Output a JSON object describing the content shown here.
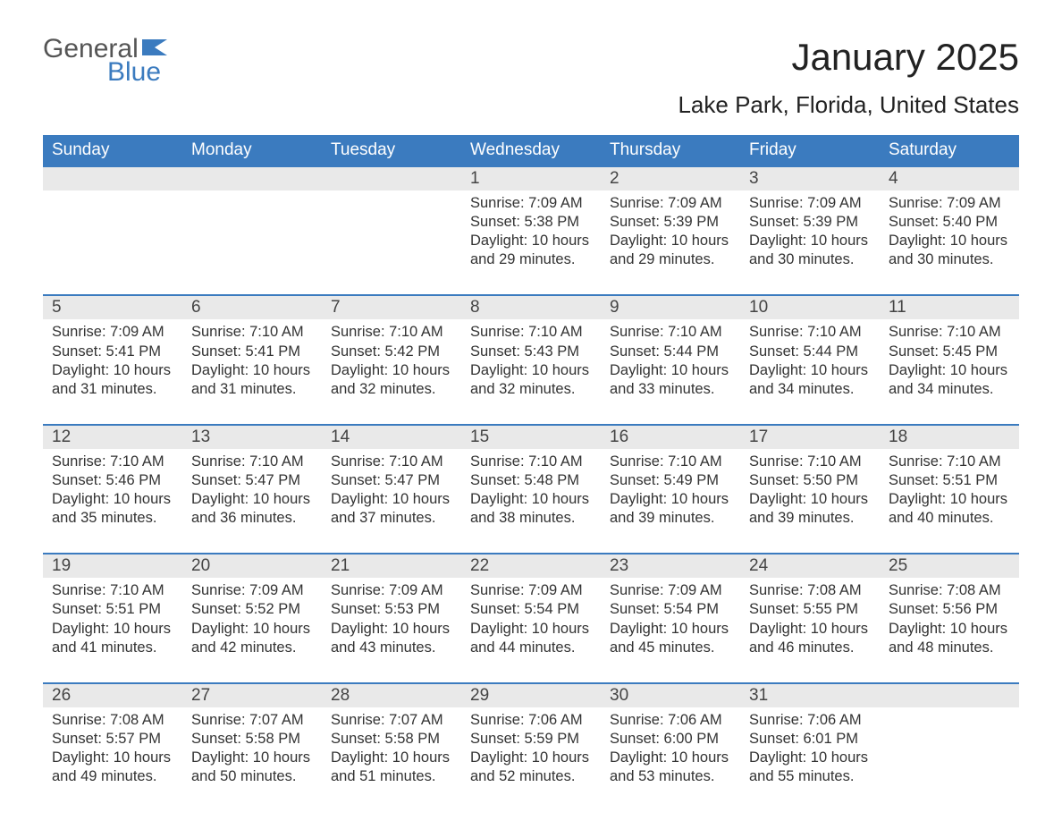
{
  "logo": {
    "general": "General",
    "blue": "Blue"
  },
  "title": "January 2025",
  "location": "Lake Park, Florida, United States",
  "colors": {
    "header_bg": "#3b7bbf",
    "header_text": "#ffffff",
    "daynum_bg": "#e9e9e9",
    "text": "#333333",
    "border": "#3b7bbf",
    "background": "#ffffff"
  },
  "weekdays": [
    "Sunday",
    "Monday",
    "Tuesday",
    "Wednesday",
    "Thursday",
    "Friday",
    "Saturday"
  ],
  "layout": {
    "columns": 7,
    "rows": 5,
    "header_fontsize": 19,
    "body_fontsize": 16.5,
    "title_fontsize": 42,
    "location_fontsize": 26
  },
  "labels": {
    "sunrise": "Sunrise: ",
    "sunset": "Sunset: ",
    "daylight_prefix": "Daylight: ",
    "and": " and ",
    "hours": " hours",
    "minutes": " minutes."
  },
  "weeks": [
    [
      null,
      null,
      null,
      {
        "day": "1",
        "sunrise": "7:09 AM",
        "sunset": "5:38 PM",
        "dl_h": "10",
        "dl_m": "29"
      },
      {
        "day": "2",
        "sunrise": "7:09 AM",
        "sunset": "5:39 PM",
        "dl_h": "10",
        "dl_m": "29"
      },
      {
        "day": "3",
        "sunrise": "7:09 AM",
        "sunset": "5:39 PM",
        "dl_h": "10",
        "dl_m": "30"
      },
      {
        "day": "4",
        "sunrise": "7:09 AM",
        "sunset": "5:40 PM",
        "dl_h": "10",
        "dl_m": "30"
      }
    ],
    [
      {
        "day": "5",
        "sunrise": "7:09 AM",
        "sunset": "5:41 PM",
        "dl_h": "10",
        "dl_m": "31"
      },
      {
        "day": "6",
        "sunrise": "7:10 AM",
        "sunset": "5:41 PM",
        "dl_h": "10",
        "dl_m": "31"
      },
      {
        "day": "7",
        "sunrise": "7:10 AM",
        "sunset": "5:42 PM",
        "dl_h": "10",
        "dl_m": "32"
      },
      {
        "day": "8",
        "sunrise": "7:10 AM",
        "sunset": "5:43 PM",
        "dl_h": "10",
        "dl_m": "32"
      },
      {
        "day": "9",
        "sunrise": "7:10 AM",
        "sunset": "5:44 PM",
        "dl_h": "10",
        "dl_m": "33"
      },
      {
        "day": "10",
        "sunrise": "7:10 AM",
        "sunset": "5:44 PM",
        "dl_h": "10",
        "dl_m": "34"
      },
      {
        "day": "11",
        "sunrise": "7:10 AM",
        "sunset": "5:45 PM",
        "dl_h": "10",
        "dl_m": "34"
      }
    ],
    [
      {
        "day": "12",
        "sunrise": "7:10 AM",
        "sunset": "5:46 PM",
        "dl_h": "10",
        "dl_m": "35"
      },
      {
        "day": "13",
        "sunrise": "7:10 AM",
        "sunset": "5:47 PM",
        "dl_h": "10",
        "dl_m": "36"
      },
      {
        "day": "14",
        "sunrise": "7:10 AM",
        "sunset": "5:47 PM",
        "dl_h": "10",
        "dl_m": "37"
      },
      {
        "day": "15",
        "sunrise": "7:10 AM",
        "sunset": "5:48 PM",
        "dl_h": "10",
        "dl_m": "38"
      },
      {
        "day": "16",
        "sunrise": "7:10 AM",
        "sunset": "5:49 PM",
        "dl_h": "10",
        "dl_m": "39"
      },
      {
        "day": "17",
        "sunrise": "7:10 AM",
        "sunset": "5:50 PM",
        "dl_h": "10",
        "dl_m": "39"
      },
      {
        "day": "18",
        "sunrise": "7:10 AM",
        "sunset": "5:51 PM",
        "dl_h": "10",
        "dl_m": "40"
      }
    ],
    [
      {
        "day": "19",
        "sunrise": "7:10 AM",
        "sunset": "5:51 PM",
        "dl_h": "10",
        "dl_m": "41"
      },
      {
        "day": "20",
        "sunrise": "7:09 AM",
        "sunset": "5:52 PM",
        "dl_h": "10",
        "dl_m": "42"
      },
      {
        "day": "21",
        "sunrise": "7:09 AM",
        "sunset": "5:53 PM",
        "dl_h": "10",
        "dl_m": "43"
      },
      {
        "day": "22",
        "sunrise": "7:09 AM",
        "sunset": "5:54 PM",
        "dl_h": "10",
        "dl_m": "44"
      },
      {
        "day": "23",
        "sunrise": "7:09 AM",
        "sunset": "5:54 PM",
        "dl_h": "10",
        "dl_m": "45"
      },
      {
        "day": "24",
        "sunrise": "7:08 AM",
        "sunset": "5:55 PM",
        "dl_h": "10",
        "dl_m": "46"
      },
      {
        "day": "25",
        "sunrise": "7:08 AM",
        "sunset": "5:56 PM",
        "dl_h": "10",
        "dl_m": "48"
      }
    ],
    [
      {
        "day": "26",
        "sunrise": "7:08 AM",
        "sunset": "5:57 PM",
        "dl_h": "10",
        "dl_m": "49"
      },
      {
        "day": "27",
        "sunrise": "7:07 AM",
        "sunset": "5:58 PM",
        "dl_h": "10",
        "dl_m": "50"
      },
      {
        "day": "28",
        "sunrise": "7:07 AM",
        "sunset": "5:58 PM",
        "dl_h": "10",
        "dl_m": "51"
      },
      {
        "day": "29",
        "sunrise": "7:06 AM",
        "sunset": "5:59 PM",
        "dl_h": "10",
        "dl_m": "52"
      },
      {
        "day": "30",
        "sunrise": "7:06 AM",
        "sunset": "6:00 PM",
        "dl_h": "10",
        "dl_m": "53"
      },
      {
        "day": "31",
        "sunrise": "7:06 AM",
        "sunset": "6:01 PM",
        "dl_h": "10",
        "dl_m": "55"
      },
      null
    ]
  ]
}
